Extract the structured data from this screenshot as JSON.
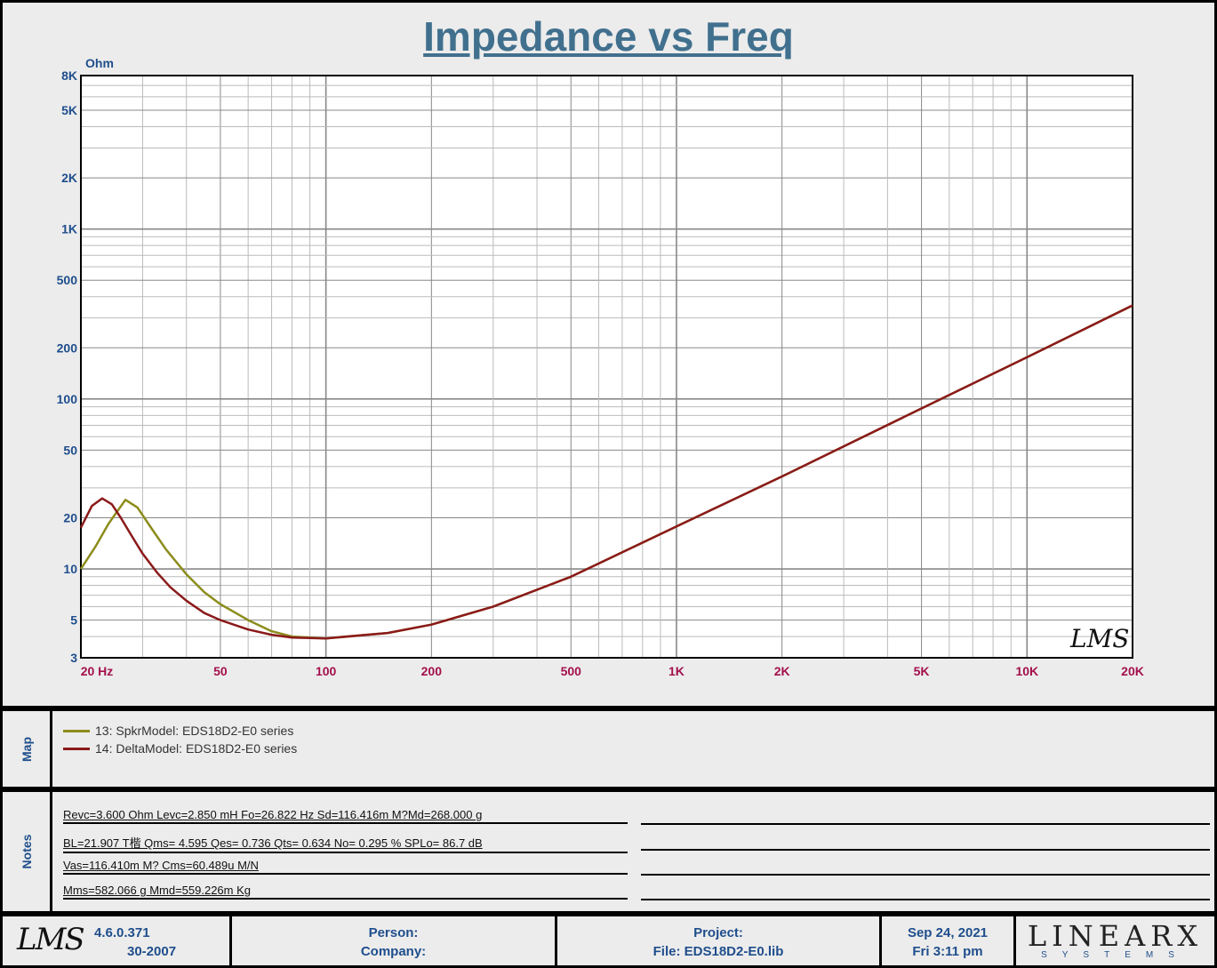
{
  "title": "Impedance vs Freq",
  "chart_data": {
    "type": "line",
    "title": "Impedance vs Freq",
    "ylabel": "Ohm",
    "xlabel": "Hz",
    "xscale": "log",
    "yscale": "log",
    "xlim": [
      20,
      20000
    ],
    "ylim": [
      3,
      8000
    ],
    "grid": true,
    "x_ticks": [
      {
        "v": 20,
        "label": "20  Hz"
      },
      {
        "v": 50,
        "label": "50"
      },
      {
        "v": 100,
        "label": "100"
      },
      {
        "v": 200,
        "label": "200"
      },
      {
        "v": 500,
        "label": "500"
      },
      {
        "v": 1000,
        "label": "1K"
      },
      {
        "v": 2000,
        "label": "2K"
      },
      {
        "v": 5000,
        "label": "5K"
      },
      {
        "v": 10000,
        "label": "10K"
      },
      {
        "v": 20000,
        "label": "20K"
      }
    ],
    "y_ticks": [
      {
        "v": 3,
        "label": "3"
      },
      {
        "v": 5,
        "label": "5"
      },
      {
        "v": 10,
        "label": "10"
      },
      {
        "v": 20,
        "label": "20"
      },
      {
        "v": 50,
        "label": "50"
      },
      {
        "v": 100,
        "label": "100"
      },
      {
        "v": 200,
        "label": "200"
      },
      {
        "v": 500,
        "label": "500"
      },
      {
        "v": 1000,
        "label": "1K"
      },
      {
        "v": 2000,
        "label": "2K"
      },
      {
        "v": 5000,
        "label": "5K"
      },
      {
        "v": 8000,
        "label": "8K"
      }
    ],
    "series": [
      {
        "name": "13: SpkrModel: EDS18D2-E0  series",
        "color": "#8c8c1c",
        "x": [
          20,
          22,
          24,
          26.8,
          29,
          32,
          35,
          40,
          45,
          50,
          60,
          70,
          80,
          100,
          150,
          200,
          300,
          500,
          1000,
          2000,
          5000,
          10000,
          20000
        ],
        "y": [
          10,
          13.5,
          18.5,
          25.5,
          23,
          17,
          13,
          9.3,
          7.3,
          6.2,
          5.0,
          4.3,
          4.0,
          3.9,
          4.2,
          4.7,
          6.0,
          9.0,
          17.8,
          35,
          88,
          176,
          355
        ]
      },
      {
        "name": "14: DeltaModel: EDS18D2-E0  series",
        "color": "#8b1a1a",
        "x": [
          20,
          21.5,
          23,
          24.5,
          26,
          28,
          30,
          33,
          36,
          40,
          45,
          50,
          60,
          70,
          80,
          100,
          150,
          200,
          300,
          500,
          1000,
          2000,
          5000,
          10000,
          20000
        ],
        "y": [
          17.5,
          23.5,
          26,
          24,
          20,
          15.5,
          12.3,
          9.5,
          7.8,
          6.5,
          5.5,
          5.0,
          4.4,
          4.1,
          3.95,
          3.9,
          4.2,
          4.7,
          6.0,
          9.0,
          17.8,
          35,
          88,
          176,
          355
        ]
      }
    ]
  },
  "map": {
    "label": "Map"
  },
  "notes": {
    "label": "Notes",
    "lines": [
      "Revc=3.600 Ohm  Levc=2.850 mH  Fo=26.822 Hz  Sd=116.416m M?Md=268.000 g",
      "BL=21.907 T楷  Qms= 4.595  Qes= 0.736  Qts= 0.634  No= 0.295 %  SPLo= 86.7 dB",
      "Vas=116.410m M? Cms=60.489u M/N",
      "Mms=582.066 g  Mmd=559.226m Kg"
    ]
  },
  "footer": {
    "logo": "LMS",
    "version": "4.6.0.371",
    "build": "30-2007",
    "person": "Person:",
    "company": "Company:",
    "project": "Project:",
    "file": "File: EDS18D2-E0.lib",
    "date": "Sep 24, 2021",
    "time": "Fri  3:11 pm",
    "brand": "LINEARX",
    "brand_sub": "SYSTEMS"
  },
  "watermark": "LMS"
}
